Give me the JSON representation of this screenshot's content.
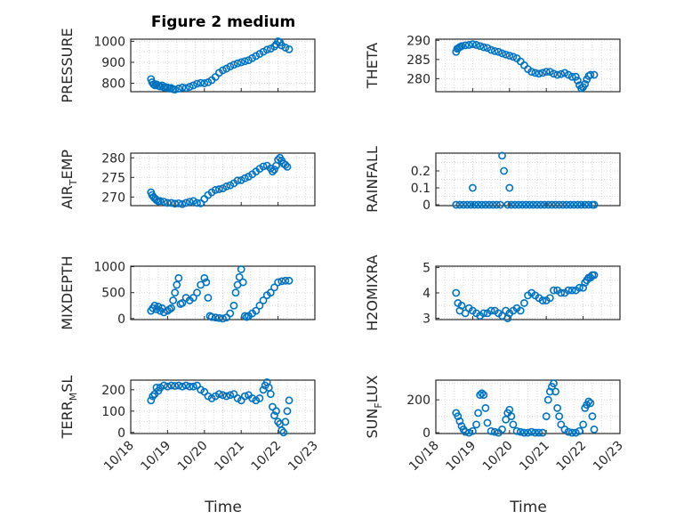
{
  "figure": {
    "title": "Figure 2 medium",
    "xlabel": "Time",
    "marker_color": "#0072bd",
    "x_ticks": [
      "10/18",
      "10/19",
      "10/20",
      "10/21",
      "10/22",
      "10/23"
    ]
  },
  "chart_data": [
    {
      "type": "scatter",
      "ylabel": "PRESSURE",
      "ylabel_sub": "",
      "ylim": [
        760,
        1010
      ],
      "yticks": [
        800,
        900,
        1000
      ],
      "ytick_labels": [
        "800",
        "900",
        "1000"
      ],
      "show_x_tick_labels": false,
      "x": [
        0.55,
        0.58,
        0.62,
        0.66,
        0.7,
        0.75,
        0.8,
        0.85,
        0.9,
        0.95,
        1.0,
        1.05,
        1.1,
        1.15,
        1.2,
        1.3,
        1.4,
        1.5,
        1.6,
        1.7,
        1.8,
        1.9,
        2.0,
        2.1,
        2.2,
        2.3,
        2.4,
        2.5,
        2.6,
        2.7,
        2.8,
        2.9,
        3.0,
        3.1,
        3.2,
        3.3,
        3.4,
        3.5,
        3.6,
        3.7,
        3.8,
        3.9,
        3.95,
        4.0,
        4.05,
        4.1,
        4.2,
        4.3
      ],
      "y": [
        820,
        805,
        795,
        790,
        795,
        788,
        785,
        790,
        780,
        782,
        780,
        775,
        778,
        772,
        770,
        775,
        780,
        778,
        783,
        790,
        798,
        802,
        800,
        805,
        815,
        830,
        850,
        862,
        870,
        880,
        888,
        895,
        900,
        905,
        910,
        920,
        930,
        940,
        950,
        960,
        965,
        975,
        985,
        1000,
        995,
        980,
        970,
        962
      ]
    },
    {
      "type": "scatter",
      "ylabel": "THETA",
      "ylabel_sub": "",
      "ylim": [
        276.6,
        290.3
      ],
      "yticks": [
        280,
        285,
        290
      ],
      "ytick_labels": [
        "280",
        "285",
        "290"
      ],
      "show_x_tick_labels": false,
      "x": [
        0.55,
        0.58,
        0.62,
        0.66,
        0.7,
        0.8,
        0.9,
        1.0,
        1.1,
        1.2,
        1.3,
        1.4,
        1.5,
        1.6,
        1.7,
        1.8,
        1.9,
        2.0,
        2.1,
        2.2,
        2.3,
        2.4,
        2.5,
        2.6,
        2.7,
        2.8,
        2.9,
        3.0,
        3.1,
        3.2,
        3.3,
        3.4,
        3.5,
        3.6,
        3.7,
        3.8,
        3.85,
        3.9,
        3.95,
        4.0,
        4.05,
        4.1,
        4.15,
        4.2,
        4.3
      ],
      "y": [
        287,
        287.8,
        288,
        288.3,
        288.5,
        288.7,
        288.8,
        289,
        288.8,
        288.5,
        288.2,
        288,
        287.5,
        287.2,
        287,
        286.6,
        286.3,
        286,
        285.7,
        285.3,
        284.5,
        283.5,
        282.5,
        281.8,
        281.5,
        281.3,
        281.5,
        281.8,
        281.8,
        281.3,
        281,
        281.2,
        281.5,
        281,
        280.5,
        280.5,
        279.5,
        278.3,
        277.5,
        277.8,
        278.6,
        279.8,
        280.7,
        281,
        281
      ]
    },
    {
      "type": "scatter",
      "ylabel": "AIR",
      "ylabel_sub": "T",
      "ylabel_tail": "EMP",
      "ylim": [
        267.8,
        281.2
      ],
      "yticks": [
        270,
        275,
        280
      ],
      "ytick_labels": [
        "270",
        "275",
        "280"
      ],
      "show_x_tick_labels": false,
      "x": [
        0.55,
        0.58,
        0.62,
        0.66,
        0.7,
        0.75,
        0.8,
        0.9,
        1.0,
        1.1,
        1.2,
        1.3,
        1.4,
        1.5,
        1.6,
        1.7,
        1.8,
        1.9,
        2.0,
        2.1,
        2.2,
        2.3,
        2.4,
        2.5,
        2.6,
        2.7,
        2.8,
        2.9,
        3.0,
        3.1,
        3.2,
        3.3,
        3.4,
        3.5,
        3.6,
        3.7,
        3.8,
        3.85,
        3.9,
        3.95,
        4.0,
        4.05,
        4.1,
        4.15,
        4.2,
        4.25
      ],
      "y": [
        271.2,
        270.5,
        270,
        269.6,
        269.2,
        268.9,
        269,
        268.8,
        268.5,
        268.5,
        268.3,
        268.4,
        268.2,
        268.5,
        268.8,
        269,
        268.5,
        268.4,
        269.5,
        270.5,
        271.2,
        271.8,
        272,
        272.2,
        272.7,
        273,
        273.5,
        274.2,
        274.3,
        274.8,
        275.2,
        275.8,
        276.5,
        277.2,
        277.8,
        278,
        277.3,
        276.5,
        277,
        278,
        279.5,
        280,
        279.3,
        278.5,
        278.2,
        277.7
      ]
    },
    {
      "type": "scatter",
      "ylabel": "RAINFALL",
      "ylabel_sub": "",
      "ylim": [
        -0.005,
        0.305
      ],
      "yticks": [
        0,
        0.1,
        0.2
      ],
      "ytick_labels": [
        "0",
        "0.1",
        "0.2"
      ],
      "show_x_tick_labels": false,
      "x": [
        0.55,
        0.65,
        0.75,
        0.85,
        0.95,
        1.0,
        1.05,
        1.15,
        1.25,
        1.35,
        1.45,
        1.55,
        1.65,
        1.75,
        1.8,
        1.85,
        1.95,
        2.0,
        2.05,
        2.15,
        2.25,
        2.35,
        2.45,
        2.55,
        2.65,
        2.75,
        2.85,
        2.95,
        3.05,
        3.15,
        3.25,
        3.35,
        3.45,
        3.55,
        3.65,
        3.75,
        3.85,
        3.95,
        4.05,
        4.15,
        4.25,
        4.3
      ],
      "y": [
        0,
        0,
        0,
        0,
        0,
        0.1,
        0,
        0,
        0,
        0,
        0,
        0,
        0,
        0,
        0.29,
        0.2,
        0,
        0.1,
        0,
        0,
        0,
        0,
        0,
        0,
        0,
        0,
        0,
        0,
        0,
        0,
        0,
        0,
        0,
        0,
        0,
        0,
        0,
        0,
        0,
        0,
        0,
        0
      ]
    },
    {
      "type": "scatter",
      "ylabel": "MIXDEPTH",
      "ylabel_sub": "",
      "ylim": [
        -20,
        1010
      ],
      "yticks": [
        0,
        500,
        1000
      ],
      "ytick_labels": [
        "0",
        "500",
        "1000"
      ],
      "show_x_tick_labels": false,
      "x": [
        0.55,
        0.6,
        0.65,
        0.7,
        0.75,
        0.8,
        0.85,
        0.9,
        1.0,
        1.05,
        1.1,
        1.15,
        1.2,
        1.25,
        1.3,
        1.35,
        1.4,
        1.5,
        1.6,
        1.7,
        1.8,
        1.9,
        2.0,
        2.05,
        2.1,
        2.15,
        2.2,
        2.3,
        2.4,
        2.5,
        2.6,
        2.7,
        2.8,
        2.85,
        2.9,
        2.95,
        3.0,
        3.05,
        3.1,
        3.15,
        3.2,
        3.3,
        3.4,
        3.5,
        3.6,
        3.7,
        3.8,
        3.9,
        4.0,
        4.1,
        4.2,
        4.3
      ],
      "y": [
        150,
        200,
        250,
        180,
        230,
        150,
        200,
        120,
        150,
        180,
        200,
        350,
        500,
        650,
        780,
        280,
        300,
        400,
        350,
        400,
        500,
        650,
        780,
        700,
        400,
        50,
        30,
        20,
        10,
        0,
        20,
        100,
        250,
        500,
        650,
        800,
        950,
        700,
        50,
        30,
        50,
        100,
        150,
        250,
        350,
        450,
        500,
        600,
        700,
        720,
        730,
        730
      ]
    },
    {
      "type": "scatter",
      "ylabel": "H2OMIXRA",
      "ylabel_sub": "",
      "ylim": [
        2.95,
        5.05
      ],
      "yticks": [
        3,
        4,
        5
      ],
      "ytick_labels": [
        "3",
        "4",
        "5"
      ],
      "show_x_tick_labels": false,
      "x": [
        0.55,
        0.6,
        0.65,
        0.7,
        0.8,
        0.9,
        1.0,
        1.1,
        1.2,
        1.3,
        1.4,
        1.5,
        1.6,
        1.7,
        1.8,
        1.9,
        1.95,
        2.0,
        2.1,
        2.2,
        2.3,
        2.4,
        2.5,
        2.6,
        2.7,
        2.8,
        2.9,
        3.0,
        3.1,
        3.2,
        3.3,
        3.4,
        3.5,
        3.6,
        3.7,
        3.8,
        3.9,
        4.0,
        4.05,
        4.1,
        4.15,
        4.2,
        4.25,
        4.3
      ],
      "y": [
        4,
        3.6,
        3.3,
        3.5,
        3.2,
        3.4,
        3.3,
        3.2,
        3.1,
        3.2,
        3.2,
        3.3,
        3.3,
        3.2,
        3.1,
        3.3,
        3.0,
        3.2,
        3.3,
        3.4,
        3.3,
        3.6,
        3.9,
        4.0,
        3.9,
        3.8,
        3.7,
        3.7,
        3.8,
        4.1,
        4.1,
        4.0,
        4.0,
        4.1,
        4.1,
        4.1,
        4.2,
        4.2,
        4.4,
        4.5,
        4.6,
        4.6,
        4.7,
        4.7
      ]
    },
    {
      "type": "scatter",
      "ylabel": "TERR",
      "ylabel_sub": "M",
      "ylabel_tail": "SL",
      "ylim": [
        -5,
        245
      ],
      "yticks": [
        0,
        100,
        200
      ],
      "ytick_labels": [
        "0",
        "100",
        "200"
      ],
      "show_x_tick_labels": true,
      "x": [
        0.55,
        0.6,
        0.65,
        0.7,
        0.75,
        0.8,
        0.9,
        1.0,
        1.1,
        1.2,
        1.3,
        1.4,
        1.5,
        1.6,
        1.7,
        1.8,
        1.9,
        2.0,
        2.1,
        2.2,
        2.3,
        2.4,
        2.5,
        2.6,
        2.7,
        2.8,
        2.9,
        3.0,
        3.1,
        3.2,
        3.3,
        3.4,
        3.5,
        3.6,
        3.65,
        3.7,
        3.75,
        3.8,
        3.85,
        3.9,
        3.95,
        4.0,
        4.05,
        4.1,
        4.15,
        4.2,
        4.25,
        4.3
      ],
      "y": [
        150,
        170,
        180,
        210,
        195,
        210,
        220,
        215,
        220,
        218,
        220,
        215,
        220,
        215,
        215,
        220,
        200,
        190,
        170,
        160,
        170,
        180,
        175,
        170,
        175,
        180,
        160,
        150,
        170,
        175,
        160,
        150,
        160,
        200,
        220,
        235,
        210,
        180,
        120,
        80,
        100,
        50,
        40,
        10,
        0,
        50,
        100,
        150
      ]
    },
    {
      "type": "scatter",
      "ylabel": "SUN",
      "ylabel_sub": "F",
      "ylabel_tail": "LUX",
      "ylim": [
        -5,
        320
      ],
      "yticks": [
        0,
        200
      ],
      "ytick_labels": [
        "0",
        "200"
      ],
      "show_x_tick_labels": true,
      "x": [
        0.55,
        0.6,
        0.65,
        0.7,
        0.75,
        0.8,
        0.9,
        1.0,
        1.1,
        1.15,
        1.2,
        1.25,
        1.3,
        1.35,
        1.4,
        1.5,
        1.6,
        1.7,
        1.8,
        1.9,
        1.95,
        2.0,
        2.05,
        2.1,
        2.2,
        2.3,
        2.4,
        2.5,
        2.6,
        2.7,
        2.8,
        2.9,
        3.0,
        3.05,
        3.1,
        3.15,
        3.2,
        3.25,
        3.3,
        3.35,
        3.4,
        3.5,
        3.6,
        3.7,
        3.8,
        3.9,
        4.0,
        4.05,
        4.1,
        4.15,
        4.2,
        4.25,
        4.3
      ],
      "y": [
        120,
        100,
        70,
        40,
        20,
        5,
        0,
        10,
        50,
        120,
        230,
        240,
        230,
        150,
        60,
        10,
        5,
        0,
        20,
        80,
        120,
        140,
        100,
        50,
        10,
        5,
        0,
        0,
        5,
        0,
        0,
        0,
        100,
        200,
        250,
        280,
        300,
        250,
        150,
        100,
        50,
        20,
        5,
        0,
        0,
        10,
        50,
        150,
        170,
        190,
        180,
        100,
        20
      ]
    }
  ]
}
